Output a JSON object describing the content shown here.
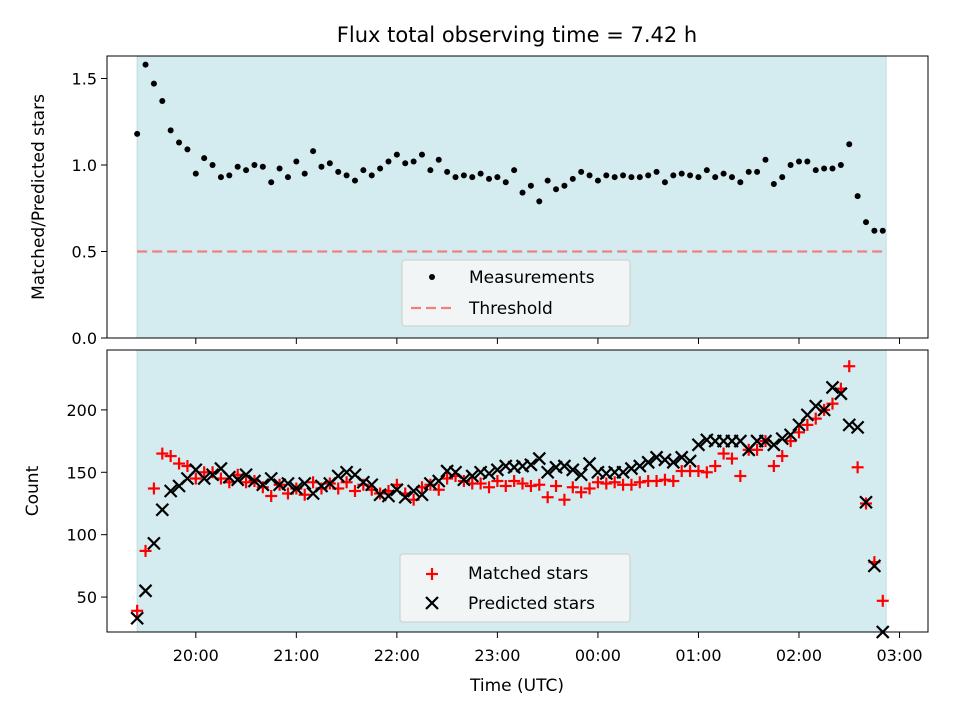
{
  "figure": {
    "title": "Flux total observing time = 7.42 h"
  },
  "chart_data": [
    {
      "type": "scatter",
      "title": "Flux total observing time = 7.42 h",
      "xlabel": "",
      "ylabel": "Matched/Predicted stars",
      "xlim": [
        "19:07",
        "03:17"
      ],
      "ylim": [
        0,
        1.63
      ],
      "yticks": [
        "0.0",
        "0.5",
        "1.0",
        "1.5"
      ],
      "shaded_region": {
        "x_start": "19:25",
        "x_end": "02:52",
        "color": "#d4ebf0"
      },
      "legend": {
        "placement": "lower-center",
        "entries": [
          "Measurements",
          "Threshold"
        ]
      },
      "threshold": {
        "name": "Threshold",
        "value": 0.5,
        "color": "#f08080"
      },
      "series": [
        {
          "name": "Measurements",
          "color": "#000000",
          "x": [
            "19:25",
            "19:30",
            "19:35",
            "19:40",
            "19:45",
            "19:50",
            "19:55",
            "20:00",
            "20:05",
            "20:10",
            "20:15",
            "20:20",
            "20:25",
            "20:30",
            "20:35",
            "20:40",
            "20:45",
            "20:50",
            "20:55",
            "21:00",
            "21:05",
            "21:10",
            "21:15",
            "21:20",
            "21:25",
            "21:30",
            "21:35",
            "21:40",
            "21:45",
            "21:50",
            "21:55",
            "22:00",
            "22:05",
            "22:10",
            "22:15",
            "22:20",
            "22:25",
            "22:30",
            "22:35",
            "22:40",
            "22:45",
            "22:50",
            "22:55",
            "23:00",
            "23:05",
            "23:10",
            "23:15",
            "23:20",
            "23:25",
            "23:30",
            "23:35",
            "23:40",
            "23:45",
            "23:50",
            "23:55",
            "00:00",
            "00:05",
            "00:10",
            "00:15",
            "00:20",
            "00:25",
            "00:30",
            "00:35",
            "00:40",
            "00:45",
            "00:50",
            "00:55",
            "01:00",
            "01:05",
            "01:10",
            "01:15",
            "01:20",
            "01:25",
            "01:30",
            "01:35",
            "01:40",
            "01:45",
            "01:50",
            "01:55",
            "02:00",
            "02:05",
            "02:10",
            "02:15",
            "02:20",
            "02:25",
            "02:30",
            "02:35",
            "02:40",
            "02:45",
            "02:50"
          ],
          "y": [
            1.18,
            1.58,
            1.47,
            1.37,
            1.2,
            1.13,
            1.09,
            0.95,
            1.04,
            1.0,
            0.93,
            0.94,
            0.99,
            0.97,
            1.0,
            0.99,
            0.9,
            0.98,
            0.93,
            1.02,
            0.95,
            1.08,
            0.99,
            1.01,
            0.96,
            0.94,
            0.91,
            0.97,
            0.94,
            0.98,
            1.02,
            1.06,
            1.01,
            1.02,
            1.06,
            0.97,
            1.03,
            0.96,
            0.93,
            0.94,
            0.93,
            0.95,
            0.92,
            0.93,
            0.9,
            0.97,
            0.84,
            0.88,
            0.79,
            0.91,
            0.86,
            0.88,
            0.92,
            0.96,
            0.94,
            0.91,
            0.94,
            0.93,
            0.94,
            0.93,
            0.93,
            0.94,
            0.96,
            0.9,
            0.94,
            0.95,
            0.94,
            0.93,
            0.97,
            0.93,
            0.95,
            0.93,
            0.9,
            0.96,
            0.96,
            1.03,
            0.89,
            0.93,
            1.0,
            1.02,
            1.02,
            0.97,
            0.98,
            0.98,
            1.0,
            1.12,
            0.82,
            0.67,
            0.62,
            0.62
          ]
        }
      ]
    },
    {
      "type": "scatter",
      "xlabel": "Time (UTC)",
      "ylabel": "Count",
      "xlim": [
        "19:07",
        "03:17"
      ],
      "ylim": [
        22,
        248
      ],
      "xticks": [
        "20:00",
        "21:00",
        "22:00",
        "23:00",
        "00:00",
        "01:00",
        "02:00",
        "03:00"
      ],
      "yticks": [
        "50",
        "100",
        "150",
        "200"
      ],
      "shaded_region": {
        "x_start": "19:25",
        "x_end": "02:52",
        "color": "#d4ebf0"
      },
      "legend": {
        "placement": "lower-center",
        "entries": [
          "Matched stars",
          "Predicted stars"
        ]
      },
      "series": [
        {
          "name": "Matched stars",
          "marker": "+",
          "color": "#ff0000",
          "x": [
            "19:25",
            "19:30",
            "19:35",
            "19:40",
            "19:45",
            "19:50",
            "19:55",
            "20:00",
            "20:05",
            "20:10",
            "20:15",
            "20:20",
            "20:25",
            "20:30",
            "20:35",
            "20:40",
            "20:45",
            "20:50",
            "20:55",
            "21:00",
            "21:05",
            "21:10",
            "21:15",
            "21:20",
            "21:25",
            "21:30",
            "21:35",
            "21:40",
            "21:45",
            "21:50",
            "21:55",
            "22:00",
            "22:05",
            "22:10",
            "22:15",
            "22:20",
            "22:25",
            "22:30",
            "22:35",
            "22:40",
            "22:45",
            "22:50",
            "22:55",
            "23:00",
            "23:05",
            "23:10",
            "23:15",
            "23:20",
            "23:25",
            "23:30",
            "23:35",
            "23:40",
            "23:45",
            "23:50",
            "23:55",
            "00:00",
            "00:05",
            "00:10",
            "00:15",
            "00:20",
            "00:25",
            "00:30",
            "00:35",
            "00:40",
            "00:45",
            "00:50",
            "00:55",
            "01:00",
            "01:05",
            "01:10",
            "01:15",
            "01:20",
            "01:25",
            "01:30",
            "01:35",
            "01:40",
            "01:45",
            "01:50",
            "01:55",
            "02:00",
            "02:05",
            "02:10",
            "02:15",
            "02:20",
            "02:25",
            "02:30",
            "02:35",
            "02:40",
            "02:45",
            "02:50"
          ],
          "y": [
            39,
            87,
            137,
            165,
            163,
            157,
            155,
            145,
            150,
            150,
            145,
            142,
            148,
            142,
            143,
            138,
            131,
            140,
            133,
            137,
            132,
            142,
            137,
            141,
            137,
            142,
            135,
            140,
            136,
            133,
            135,
            140,
            133,
            128,
            138,
            140,
            136,
            145,
            147,
            143,
            141,
            141,
            138,
            143,
            139,
            143,
            141,
            139,
            140,
            130,
            139,
            128,
            138,
            134,
            137,
            142,
            141,
            142,
            140,
            140,
            142,
            143,
            143,
            144,
            143,
            151,
            151,
            151,
            150,
            155,
            165,
            161,
            147,
            168,
            168,
            175,
            155,
            163,
            175,
            182,
            188,
            193,
            200,
            205,
            217,
            235,
            154,
            125,
            78,
            47
          ]
        },
        {
          "name": "Predicted stars",
          "marker": "x",
          "color": "#000000",
          "x": [
            "19:25",
            "19:30",
            "19:35",
            "19:40",
            "19:45",
            "19:50",
            "19:55",
            "20:00",
            "20:05",
            "20:10",
            "20:15",
            "20:20",
            "20:25",
            "20:30",
            "20:35",
            "20:40",
            "20:45",
            "20:50",
            "20:55",
            "21:00",
            "21:05",
            "21:10",
            "21:15",
            "21:20",
            "21:25",
            "21:30",
            "21:35",
            "21:40",
            "21:45",
            "21:50",
            "21:55",
            "22:00",
            "22:05",
            "22:10",
            "22:15",
            "22:20",
            "22:25",
            "22:30",
            "22:35",
            "22:40",
            "22:45",
            "22:50",
            "22:55",
            "23:00",
            "23:05",
            "23:10",
            "23:15",
            "23:20",
            "23:25",
            "23:30",
            "23:35",
            "23:40",
            "23:45",
            "23:50",
            "23:55",
            "00:00",
            "00:05",
            "00:10",
            "00:15",
            "00:20",
            "00:25",
            "00:30",
            "00:35",
            "00:40",
            "00:45",
            "00:50",
            "00:55",
            "01:00",
            "01:05",
            "01:10",
            "01:15",
            "01:20",
            "01:25",
            "01:30",
            "01:35",
            "01:40",
            "01:45",
            "01:50",
            "01:55",
            "02:00",
            "02:05",
            "02:10",
            "02:15",
            "02:20",
            "02:25",
            "02:30",
            "02:35",
            "02:40",
            "02:45",
            "02:50"
          ],
          "y": [
            33,
            55,
            93,
            120,
            135,
            139,
            145,
            152,
            145,
            148,
            153,
            146,
            144,
            148,
            143,
            140,
            145,
            140,
            141,
            137,
            141,
            133,
            139,
            141,
            147,
            150,
            148,
            142,
            140,
            132,
            131,
            136,
            130,
            135,
            132,
            141,
            143,
            151,
            150,
            144,
            147,
            150,
            149,
            152,
            155,
            154,
            155,
            156,
            161,
            150,
            154,
            155,
            152,
            148,
            157,
            150,
            149,
            150,
            150,
            153,
            155,
            158,
            162,
            160,
            158,
            162,
            159,
            172,
            176,
            175,
            175,
            175,
            175,
            168,
            175,
            175,
            172,
            177,
            180,
            188,
            196,
            203,
            200,
            218,
            213,
            188,
            186,
            126,
            75,
            22
          ]
        }
      ]
    }
  ]
}
